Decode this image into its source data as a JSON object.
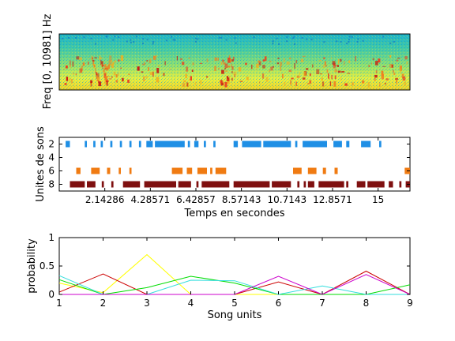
{
  "chart_data": [
    {
      "type": "heatmap",
      "ylabel": "Freq [0, 10981] Hz",
      "description_colormap": "jet"
    },
    {
      "type": "bar",
      "xlabel": "Temps en secondes",
      "ylabel": "Unites de sons",
      "xlim": [
        0,
        16.5
      ],
      "ylim": [
        1,
        9
      ],
      "x_ticks": [
        2.14286,
        4.28571,
        6.42857,
        8.57143,
        10.7143,
        12.8571,
        15
      ],
      "x_tick_labels": [
        "2.14286",
        "4.28571",
        "6.42857",
        "8.57143",
        "10.7143",
        "12.8571",
        "15"
      ],
      "y_ticks": [
        2,
        4,
        6,
        8
      ],
      "y_tick_labels": [
        "2",
        "4",
        "6",
        "8"
      ],
      "series": [
        {
          "unit": 2,
          "color": "#1f8fe5",
          "events": [
            [
              0.3,
              0.5
            ],
            [
              1.2,
              1.3
            ],
            [
              1.6,
              1.7
            ],
            [
              1.95,
              2.05
            ],
            [
              2.4,
              2.5
            ],
            [
              2.85,
              2.95
            ],
            [
              3.3,
              3.4
            ],
            [
              3.75,
              3.85
            ],
            [
              4.1,
              4.4
            ],
            [
              4.5,
              5.9
            ],
            [
              6.05,
              6.15
            ],
            [
              6.35,
              6.55
            ],
            [
              6.8,
              6.9
            ],
            [
              7.25,
              7.35
            ],
            [
              8.2,
              8.4
            ],
            [
              8.6,
              9.5
            ],
            [
              9.6,
              10.9
            ],
            [
              11.1,
              11.2
            ],
            [
              11.45,
              12.6
            ],
            [
              12.9,
              13.3
            ],
            [
              13.5,
              13.65
            ],
            [
              14.2,
              14.65
            ],
            [
              15.05,
              15.15
            ]
          ]
        },
        {
          "unit": 6,
          "color": "#f07b12",
          "events": [
            [
              0.8,
              1.0
            ],
            [
              1.5,
              1.9
            ],
            [
              2.25,
              2.4
            ],
            [
              2.8,
              2.9
            ],
            [
              3.3,
              3.4
            ],
            [
              5.3,
              5.8
            ],
            [
              6.0,
              6.25
            ],
            [
              6.5,
              6.95
            ],
            [
              7.1,
              7.2
            ],
            [
              7.35,
              7.85
            ],
            [
              11.0,
              11.4
            ],
            [
              11.7,
              12.1
            ],
            [
              12.4,
              12.55
            ],
            [
              12.95,
              13.1
            ],
            [
              16.25,
              16.5
            ]
          ]
        },
        {
          "unit": 8,
          "color": "#7f1010",
          "events": [
            [
              0.5,
              1.2
            ],
            [
              1.3,
              1.7
            ],
            [
              2.0,
              2.1
            ],
            [
              2.45,
              2.55
            ],
            [
              3.0,
              3.8
            ],
            [
              4.0,
              5.5
            ],
            [
              5.6,
              6.2
            ],
            [
              6.45,
              6.55
            ],
            [
              6.7,
              8.0
            ],
            [
              8.2,
              9.9
            ],
            [
              10.0,
              10.9
            ],
            [
              11.2,
              11.3
            ],
            [
              11.5,
              11.6
            ],
            [
              11.7,
              12.0
            ],
            [
              12.2,
              13.4
            ],
            [
              13.5,
              13.6
            ],
            [
              14.0,
              14.4
            ],
            [
              14.5,
              15.3
            ],
            [
              15.5,
              15.7
            ],
            [
              16.0,
              16.1
            ],
            [
              16.3,
              16.5
            ]
          ]
        }
      ]
    },
    {
      "type": "line",
      "xlabel": "Song units",
      "ylabel": "probability",
      "xlim": [
        1,
        9
      ],
      "ylim": [
        0,
        1
      ],
      "x": [
        1,
        2,
        3,
        4,
        5,
        6,
        7,
        8,
        9
      ],
      "x_tick_labels": [
        "1",
        "2",
        "3",
        "4",
        "5",
        "6",
        "7",
        "8",
        "9"
      ],
      "y_ticks": [
        0,
        0.5,
        1
      ],
      "y_tick_labels": [
        "0",
        "0.5",
        "1"
      ],
      "series": [
        {
          "color": "#ffff00",
          "values": [
            0.2,
            0.03,
            0.7,
            0.0,
            0.0,
            0.0,
            0.0,
            0.0,
            0.0
          ]
        },
        {
          "color": "#cc0000",
          "values": [
            0.04,
            0.36,
            0.0,
            0.0,
            0.0,
            0.22,
            0.0,
            0.41,
            0.0
          ]
        },
        {
          "color": "#00dd00",
          "values": [
            0.26,
            0.0,
            0.12,
            0.32,
            0.2,
            0.0,
            0.0,
            0.0,
            0.17
          ]
        },
        {
          "color": "#33dddd",
          "values": [
            0.33,
            0.0,
            0.0,
            0.25,
            0.24,
            0.0,
            0.15,
            0.0,
            0.0
          ]
        },
        {
          "color": "#cc00cc",
          "values": [
            0.0,
            0.0,
            0.0,
            0.0,
            0.0,
            0.32,
            0.0,
            0.35,
            0.0
          ]
        }
      ]
    }
  ]
}
